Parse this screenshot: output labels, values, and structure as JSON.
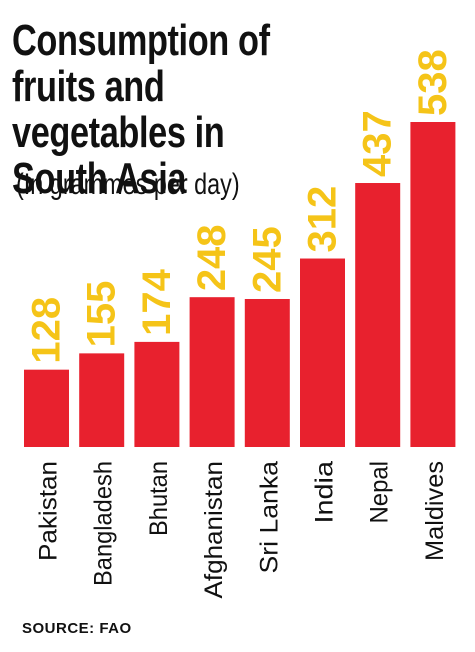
{
  "title": "Consumption of fruits and vegetables in South Asia",
  "subtitle": "(In grammes per day)",
  "source": "SOURCE: FAO",
  "colors": {
    "bar": "#e8212e",
    "value_label": "#f5c418",
    "text": "#111111"
  },
  "chart_data": {
    "type": "bar",
    "title": "Consumption of fruits and vegetables in South Asia",
    "subtitle": "(In grammes per day)",
    "categories": [
      "Pakistan",
      "Bangladesh",
      "Bhutan",
      "Afghanistan",
      "Sri Lanka",
      "India",
      "Nepal",
      "Maldives"
    ],
    "values": [
      128,
      155,
      174,
      248,
      245,
      312,
      437,
      538
    ],
    "ylim": [
      0,
      538
    ],
    "grid": false,
    "legend": "none"
  }
}
